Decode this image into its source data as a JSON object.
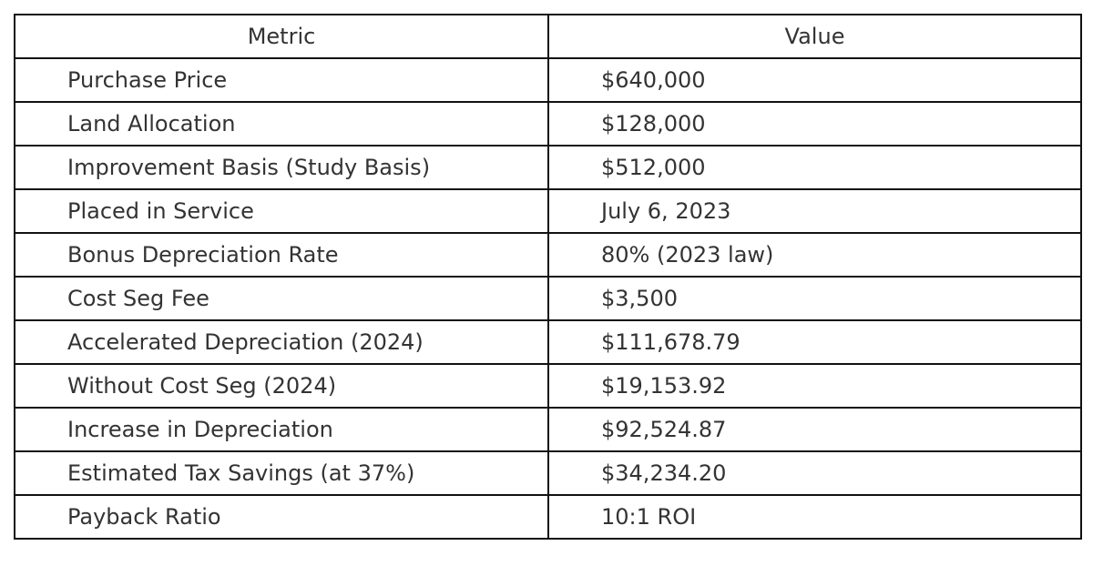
{
  "table": {
    "headers": [
      "Metric",
      "Value"
    ],
    "rows": [
      [
        "Purchase Price",
        "$640,000"
      ],
      [
        "Land Allocation",
        "$128,000"
      ],
      [
        "Improvement Basis (Study Basis)",
        "$512,000"
      ],
      [
        "Placed in Service",
        "July 6, 2023"
      ],
      [
        "Bonus Depreciation Rate",
        "80% (2023 law)"
      ],
      [
        "Cost Seg Fee",
        "$3,500"
      ],
      [
        "Accelerated Depreciation (2024)",
        "$111,678.79"
      ],
      [
        "Without Cost Seg (2024)",
        "$19,153.92"
      ],
      [
        "Increase in Depreciation",
        "$92,524.87"
      ],
      [
        "Estimated Tax Savings (at 37%)",
        "$34,234.20"
      ],
      [
        "Payback Ratio",
        "10:1 ROI"
      ]
    ]
  }
}
